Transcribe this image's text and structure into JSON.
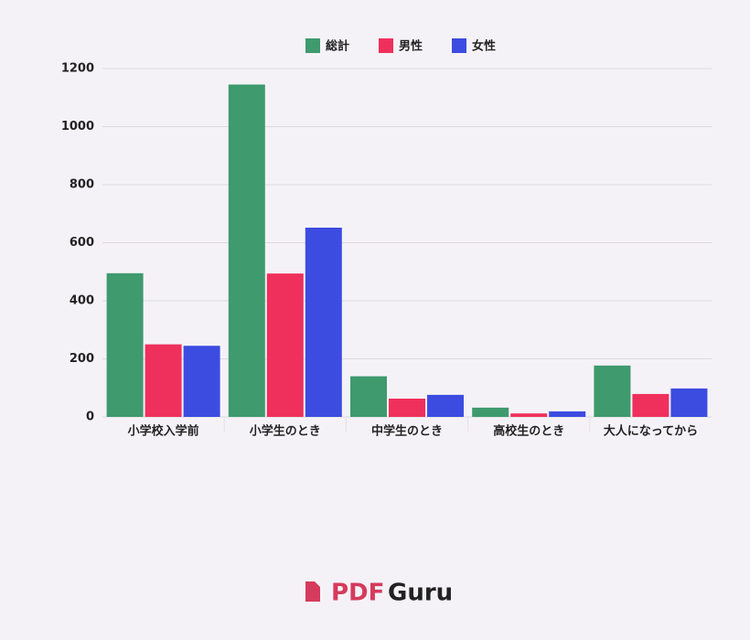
{
  "chart_data": {
    "type": "bar",
    "categories": [
      "小学校入学前",
      "小学生のとき",
      "中学生のとき",
      "高校生のとき",
      "大人になってから"
    ],
    "series": [
      {
        "name": "総計",
        "color": "#3f9a6e",
        "values": [
          495,
          1145,
          140,
          32,
          177
        ]
      },
      {
        "name": "男性",
        "color": "#f0305c",
        "values": [
          250,
          494,
          63,
          12,
          79
        ]
      },
      {
        "name": "女性",
        "color": "#3c4ce0",
        "values": [
          245,
          652,
          76,
          19,
          98
        ]
      }
    ],
    "ylim": [
      0,
      1200
    ],
    "yticks": [
      0,
      200,
      400,
      600,
      800,
      1000,
      1200
    ],
    "grid": true,
    "legend": "top"
  },
  "logo": {
    "mark": "PDF",
    "name": "Guru"
  }
}
